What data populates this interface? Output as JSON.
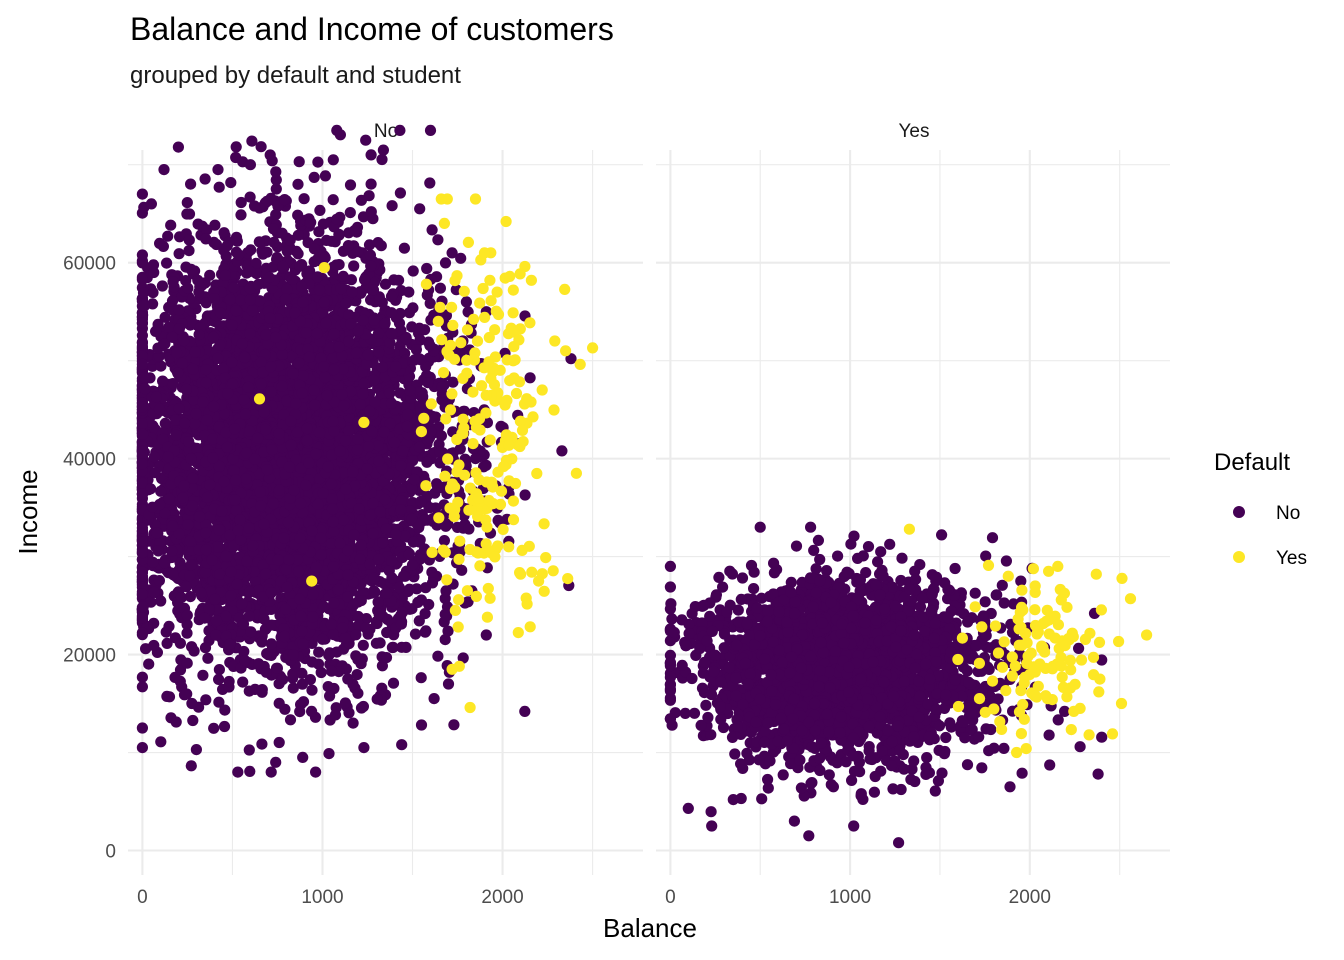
{
  "chart_data": {
    "type": "scatter",
    "title": "Balance and Income of customers",
    "subtitle": "grouped by default and student",
    "xlabel": "Balance",
    "ylabel": "Income",
    "xlim": [
      -80,
      2780
    ],
    "ylim": [
      -2500,
      71500
    ],
    "x_ticks": [
      0,
      1000,
      2000
    ],
    "x_tick_labels": [
      "0",
      "1000",
      "2000"
    ],
    "y_ticks": [
      0,
      20000,
      40000,
      60000
    ],
    "y_tick_labels": [
      "0",
      "20000",
      "40000",
      "60000"
    ],
    "grid": true,
    "legend": {
      "title": "Default",
      "position": "right",
      "entries": [
        "No",
        "Yes"
      ]
    },
    "colors": {
      "No": "#440154",
      "Yes": "#FDE725"
    },
    "facets": [
      {
        "label": "No",
        "series": [
          {
            "name": "No",
            "cluster": {
              "x_mean": 800,
              "x_sd": 420,
              "x_min": 0,
              "x_max": 2400,
              "y_mean": 40500,
              "y_sd": 10000,
              "y_min": 8000,
              "y_max": 73500,
              "n": 6800
            },
            "points": [
              {
                "x": 1600,
                "y": 73500
              },
              {
                "x": 1240,
                "y": 72500
              },
              {
                "x": 200,
                "y": 71800
              },
              {
                "x": 1270,
                "y": 71000
              },
              {
                "x": 1060,
                "y": 70500
              },
              {
                "x": 600,
                "y": 70000
              },
              {
                "x": 120,
                "y": 69500
              },
              {
                "x": 420,
                "y": 69500
              },
              {
                "x": 1540,
                "y": 65500
              },
              {
                "x": 2380,
                "y": 50200
              },
              {
                "x": 1910,
                "y": 55000
              },
              {
                "x": 1780,
                "y": 52000
              },
              {
                "x": 1880,
                "y": 44000
              },
              {
                "x": 1850,
                "y": 40000
              },
              {
                "x": 1830,
                "y": 26500
              },
              {
                "x": 1910,
                "y": 22000
              },
              {
                "x": 0,
                "y": 10500
              },
              {
                "x": 530,
                "y": 8000
              },
              {
                "x": 740,
                "y": 9000
              },
              {
                "x": 890,
                "y": 9500
              },
              {
                "x": 1440,
                "y": 10800
              },
              {
                "x": 1230,
                "y": 10500
              },
              {
                "x": 1170,
                "y": 13000
              },
              {
                "x": 1620,
                "y": 15500
              },
              {
                "x": 1700,
                "y": 17000
              },
              {
                "x": 300,
                "y": 10300
              },
              {
                "x": 0,
                "y": 67000
              },
              {
                "x": 50,
                "y": 66000
              }
            ]
          },
          {
            "name": "Yes",
            "cluster": {
              "x_mean": 1900,
              "x_sd": 170,
              "x_min": 1300,
              "x_max": 2520,
              "y_mean": 43000,
              "y_sd": 9500,
              "y_min": 14500,
              "y_max": 66500,
              "n": 200
            },
            "points": [
              {
                "x": 1660,
                "y": 66500
              },
              {
                "x": 2020,
                "y": 64200
              },
              {
                "x": 2500,
                "y": 51300
              },
              {
                "x": 2220,
                "y": 47000
              },
              {
                "x": 2410,
                "y": 38500
              },
              {
                "x": 2200,
                "y": 27500
              },
              {
                "x": 2100,
                "y": 28200
              },
              {
                "x": 1820,
                "y": 14600
              },
              {
                "x": 1760,
                "y": 18800
              },
              {
                "x": 1720,
                "y": 18500
              },
              {
                "x": 2160,
                "y": 58200
              },
              {
                "x": 2040,
                "y": 58600
              },
              {
                "x": 1900,
                "y": 61000
              },
              {
                "x": 2290,
                "y": 52000
              },
              {
                "x": 2350,
                "y": 51000
              },
              {
                "x": 940,
                "y": 27500
              },
              {
                "x": 650,
                "y": 46100
              },
              {
                "x": 1010,
                "y": 59500
              },
              {
                "x": 1230,
                "y": 43700
              }
            ]
          }
        ]
      },
      {
        "label": "Yes",
        "series": [
          {
            "name": "No",
            "cluster": {
              "x_mean": 950,
              "x_sd": 400,
              "x_min": 0,
              "x_max": 2400,
              "y_mean": 18500,
              "y_sd": 4500,
              "y_min": 700,
              "y_max": 33000,
              "n": 2700
            },
            "points": [
              {
                "x": 500,
                "y": 33000
              },
              {
                "x": 780,
                "y": 33000
              },
              {
                "x": 0,
                "y": 29000
              },
              {
                "x": 100,
                "y": 4300
              },
              {
                "x": 230,
                "y": 2500
              },
              {
                "x": 350,
                "y": 5200
              },
              {
                "x": 690,
                "y": 3000
              },
              {
                "x": 770,
                "y": 1500
              },
              {
                "x": 1020,
                "y": 2500
              },
              {
                "x": 1270,
                "y": 800
              },
              {
                "x": 1890,
                "y": 6500
              },
              {
                "x": 2380,
                "y": 7800
              },
              {
                "x": 2360,
                "y": 24200
              },
              {
                "x": 1950,
                "y": 27500
              },
              {
                "x": 1170,
                "y": 30500
              }
            ]
          },
          {
            "name": "Yes",
            "cluster": {
              "x_mean": 2050,
              "x_sd": 180,
              "x_min": 1550,
              "x_max": 2650,
              "y_mean": 19500,
              "y_sd": 3800,
              "y_min": 10000,
              "y_max": 29000,
              "n": 110
            },
            "points": [
              {
                "x": 1330,
                "y": 32800
              },
              {
                "x": 2560,
                "y": 25700
              },
              {
                "x": 2650,
                "y": 22000
              },
              {
                "x": 2370,
                "y": 28200
              },
              {
                "x": 2510,
                "y": 15000
              },
              {
                "x": 2460,
                "y": 11900
              },
              {
                "x": 2330,
                "y": 11800
              },
              {
                "x": 1980,
                "y": 10400
              },
              {
                "x": 1770,
                "y": 29100
              },
              {
                "x": 1880,
                "y": 28000
              },
              {
                "x": 2030,
                "y": 27000
              },
              {
                "x": 2390,
                "y": 17500
              },
              {
                "x": 1720,
                "y": 15500
              },
              {
                "x": 1600,
                "y": 19500
              }
            ]
          }
        ]
      }
    ]
  }
}
